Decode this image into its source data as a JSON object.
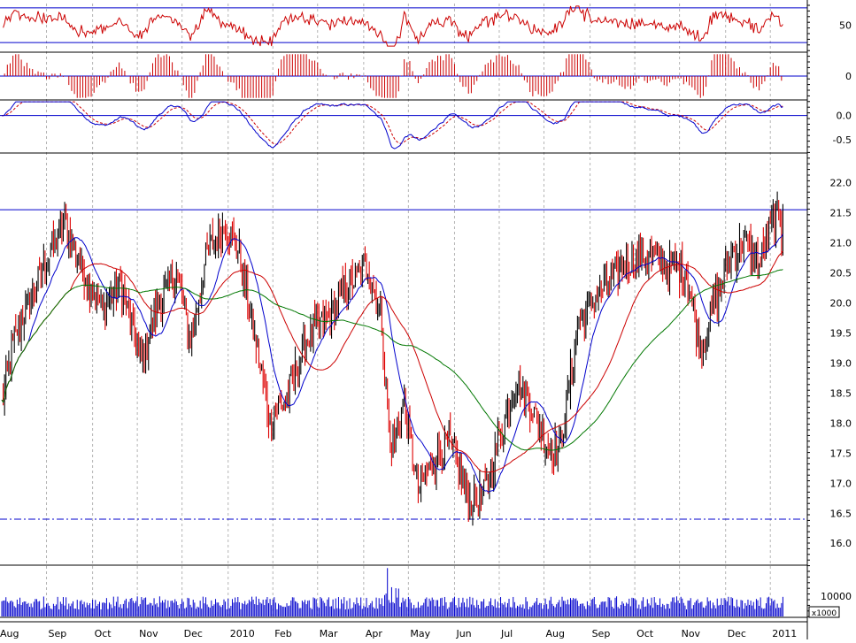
{
  "chart_data": [
    {
      "panel": "rsi",
      "type": "line",
      "yticks": [
        {
          "label": "50",
          "value": 50
        }
      ],
      "levels": [
        70,
        30
      ],
      "ylim": [
        20,
        75
      ],
      "color": "#cc0000"
    },
    {
      "panel": "histogram",
      "type": "bar",
      "yticks": [
        {
          "label": "0",
          "value": 0
        }
      ],
      "ylim": [
        -1,
        1
      ],
      "color": "#cc0000"
    },
    {
      "panel": "macd",
      "type": "line",
      "yticks": [
        {
          "label": "0.0",
          "value": 0.0
        },
        {
          "label": "-0.5",
          "value": -0.5
        }
      ],
      "ylim": [
        -0.75,
        0.3
      ],
      "series": [
        {
          "color": "#0000cc",
          "style": "solid"
        },
        {
          "color": "#cc0000",
          "style": "dashed"
        }
      ]
    },
    {
      "panel": "price",
      "type": "candlestick",
      "yticks": [
        {
          "label": "22.0",
          "value": 22.0
        },
        {
          "label": "21.5",
          "value": 21.5
        },
        {
          "label": "21.0",
          "value": 21.0
        },
        {
          "label": "20.5",
          "value": 20.5
        },
        {
          "label": "20.0",
          "value": 20.0
        },
        {
          "label": "19.5",
          "value": 19.5
        },
        {
          "label": "19.0",
          "value": 19.0
        },
        {
          "label": "18.5",
          "value": 18.5
        },
        {
          "label": "18.0",
          "value": 18.0
        },
        {
          "label": "17.5",
          "value": 17.5
        },
        {
          "label": "17.0",
          "value": 17.0
        },
        {
          "label": "16.5",
          "value": 16.5
        },
        {
          "label": "16.0",
          "value": 16.0
        }
      ],
      "ylim": [
        15.65,
        22.45
      ],
      "resistance": 21.55,
      "support": 16.4,
      "x": [
        "Aug",
        "Sep",
        "Oct",
        "Nov",
        "Dec",
        "2010",
        "Feb",
        "Mar",
        "Apr",
        "May",
        "Jun",
        "Jul",
        "Aug",
        "Sep",
        "Oct",
        "Nov",
        "Dec",
        "2011"
      ],
      "close_anchors": [
        [
          0,
          18.3
        ],
        [
          10,
          19.5
        ],
        [
          30,
          20.6
        ],
        [
          45,
          21.35
        ],
        [
          55,
          20.7
        ],
        [
          72,
          19.9
        ],
        [
          85,
          20.3
        ],
        [
          100,
          19.0
        ],
        [
          112,
          20.0
        ],
        [
          125,
          20.5
        ],
        [
          135,
          19.4
        ],
        [
          148,
          20.9
        ],
        [
          160,
          21.3
        ],
        [
          170,
          20.8
        ],
        [
          182,
          19.3
        ],
        [
          192,
          18.0
        ],
        [
          205,
          18.5
        ],
        [
          218,
          19.4
        ],
        [
          232,
          19.7
        ],
        [
          248,
          20.3
        ],
        [
          262,
          20.6
        ],
        [
          272,
          19.7
        ],
        [
          278,
          17.5
        ],
        [
          288,
          18.3
        ],
        [
          298,
          16.9
        ],
        [
          310,
          17.4
        ],
        [
          320,
          17.7
        ],
        [
          335,
          16.7
        ],
        [
          345,
          16.8
        ],
        [
          355,
          17.7
        ],
        [
          368,
          18.7
        ],
        [
          380,
          18.2
        ],
        [
          392,
          17.6
        ],
        [
          400,
          17.6
        ],
        [
          412,
          19.6
        ],
        [
          428,
          20.2
        ],
        [
          445,
          20.6
        ],
        [
          460,
          20.8
        ],
        [
          475,
          20.6
        ],
        [
          490,
          20.5
        ],
        [
          500,
          19.2
        ],
        [
          510,
          20.0
        ],
        [
          520,
          20.7
        ],
        [
          530,
          21.0
        ],
        [
          542,
          20.6
        ],
        [
          552,
          21.4
        ]
      ],
      "series": [
        {
          "color": "#0000cc",
          "period": "short"
        },
        {
          "color": "#cc0000",
          "period": "medium"
        },
        {
          "color": "#007700",
          "period": "long"
        }
      ]
    },
    {
      "panel": "volume",
      "type": "bar",
      "unit": "x1000",
      "yticks": [
        {
          "label": "10000",
          "value": 10000
        }
      ],
      "ylim": [
        0,
        25000
      ],
      "color": "#0000cc"
    }
  ]
}
